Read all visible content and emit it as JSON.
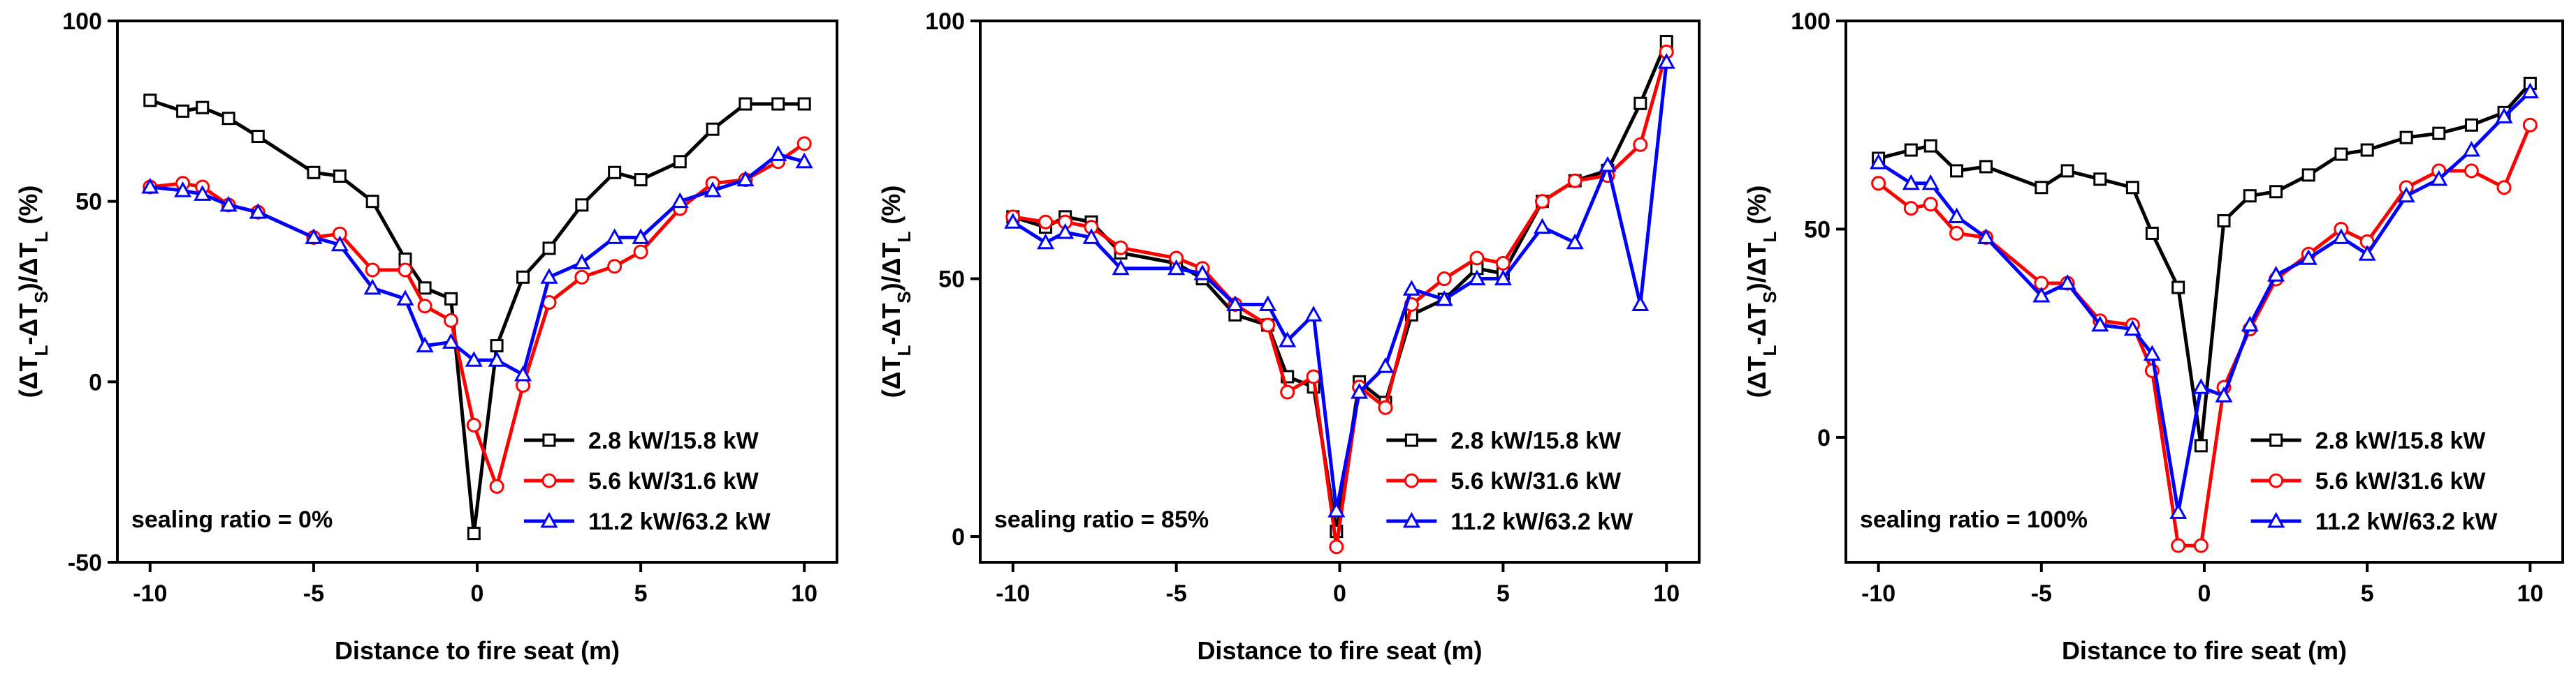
{
  "chart_data": [
    {
      "type": "line",
      "annotation": "sealing ratio = 0%",
      "xlabel": "Distance to fire seat (m)",
      "ylabel": "(ΔT_L-ΔT_S)/ΔT_L (%)",
      "xlim": [
        -11,
        11
      ],
      "ylim": [
        -50,
        100
      ],
      "xticks": [
        -10,
        -5,
        0,
        5,
        10
      ],
      "yticks": [
        -50,
        0,
        50,
        100
      ],
      "legend": "bottom-right",
      "series": [
        {
          "name": "2.8 kW/15.8 kW",
          "color": "#000000",
          "marker": "square",
          "x": [
            -10,
            -9,
            -8.4,
            -7.6,
            -6.7,
            -5,
            -4.2,
            -3.2,
            -2.2,
            -1.6,
            -0.8,
            -0.1,
            0.6,
            1.4,
            2.2,
            3.2,
            4.2,
            5,
            6.2,
            7.2,
            8.2,
            9.2,
            10
          ],
          "y": [
            78,
            75,
            76,
            73,
            68,
            58,
            57,
            50,
            34,
            26,
            23,
            -42,
            10,
            29,
            37,
            49,
            58,
            56,
            61,
            70,
            77,
            77,
            77
          ]
        },
        {
          "name": "5.6 kW/31.6 kW",
          "color": "#ff0000",
          "marker": "circle",
          "x": [
            -10,
            -9,
            -8.4,
            -7.6,
            -6.7,
            -5,
            -4.2,
            -3.2,
            -2.2,
            -1.6,
            -0.8,
            -0.1,
            0.6,
            1.4,
            2.2,
            3.2,
            4.2,
            5,
            6.2,
            7.2,
            8.2,
            9.2,
            10
          ],
          "y": [
            54,
            55,
            54,
            49,
            47,
            40,
            41,
            31,
            31,
            21,
            17,
            -12,
            -29,
            -1,
            22,
            29,
            32,
            36,
            48,
            55,
            56,
            61,
            66
          ]
        },
        {
          "name": "11.2 kW/63.2 kW",
          "color": "#0000ff",
          "marker": "triangle",
          "x": [
            -10,
            -9,
            -8.4,
            -7.6,
            -6.7,
            -5,
            -4.2,
            -3.2,
            -2.2,
            -1.6,
            -0.8,
            -0.1,
            0.6,
            1.4,
            2.2,
            3.2,
            4.2,
            5,
            6.2,
            7.2,
            8.2,
            9.2,
            10
          ],
          "y": [
            54,
            53,
            52,
            49,
            47,
            40,
            38,
            26,
            23,
            10,
            11,
            6,
            6,
            2,
            29,
            33,
            40,
            40,
            50,
            53,
            56,
            63,
            61
          ]
        }
      ]
    },
    {
      "type": "line",
      "annotation": "sealing ratio = 85%",
      "xlabel": "Distance to fire seat (m)",
      "ylabel": "(ΔT_L-ΔT_S)/ΔT_L (%)",
      "xlim": [
        -11,
        11
      ],
      "ylim": [
        -5,
        100
      ],
      "xticks": [
        -10,
        -5,
        0,
        5,
        10
      ],
      "yticks": [
        0,
        50,
        100
      ],
      "legend": "bottom-right",
      "series": [
        {
          "name": "2.8 kW/15.8 kW",
          "color": "#000000",
          "marker": "square",
          "x": [
            -10,
            -9,
            -8.4,
            -7.6,
            -6.7,
            -5,
            -4.2,
            -3.2,
            -2.2,
            -1.6,
            -0.8,
            -0.1,
            0.6,
            1.4,
            2.2,
            3.2,
            4.2,
            5,
            6.2,
            7.2,
            8.2,
            9.2,
            10
          ],
          "y": [
            62,
            60,
            62,
            61,
            55,
            53,
            50,
            43,
            41,
            31,
            29,
            1,
            30,
            26,
            43,
            46,
            52,
            51,
            65,
            69,
            71,
            84,
            96
          ]
        },
        {
          "name": "5.6 kW/31.6 kW",
          "color": "#ff0000",
          "marker": "circle",
          "x": [
            -10,
            -9,
            -8.4,
            -7.6,
            -6.7,
            -5,
            -4.2,
            -3.2,
            -2.2,
            -1.6,
            -0.8,
            -0.1,
            0.6,
            1.4,
            2.2,
            3.2,
            4.2,
            5,
            6.2,
            7.2,
            8.2,
            9.2,
            10
          ],
          "y": [
            62,
            61,
            61,
            60,
            56,
            54,
            52,
            45,
            41,
            28,
            31,
            -2,
            29,
            25,
            45,
            50,
            54,
            53,
            65,
            69,
            70,
            76,
            94
          ]
        },
        {
          "name": "11.2 kW/63.2 kW",
          "color": "#0000ff",
          "marker": "triangle",
          "x": [
            -10,
            -9,
            -8.4,
            -7.6,
            -6.7,
            -5,
            -4.2,
            -3.2,
            -2.2,
            -1.6,
            -0.8,
            -0.1,
            0.6,
            1.4,
            2.2,
            3.2,
            4.2,
            5,
            6.2,
            7.2,
            8.2,
            9.2,
            10
          ],
          "y": [
            61,
            57,
            59,
            58,
            52,
            52,
            51,
            45,
            45,
            38,
            43,
            5,
            28,
            33,
            48,
            46,
            50,
            50,
            60,
            57,
            72,
            45,
            92
          ]
        }
      ]
    },
    {
      "type": "line",
      "annotation": "sealing ratio = 100%",
      "xlabel": "Distance to fire seat (m)",
      "ylabel": "(ΔT_L-ΔT_S)/ΔT_L (%)",
      "xlim": [
        -11,
        11
      ],
      "ylim": [
        -30,
        100
      ],
      "xticks": [
        -10,
        -5,
        0,
        5,
        10
      ],
      "yticks": [
        0,
        50,
        100
      ],
      "legend": "bottom-right",
      "series": [
        {
          "name": "2.8 kW/15.8 kW",
          "color": "#000000",
          "marker": "square",
          "x": [
            -10,
            -9,
            -8.4,
            -7.6,
            -6.7,
            -5,
            -4.2,
            -3.2,
            -2.2,
            -1.6,
            -0.8,
            -0.1,
            0.6,
            1.4,
            2.2,
            3.2,
            4.2,
            5,
            6.2,
            7.2,
            8.2,
            9.2,
            10
          ],
          "y": [
            67,
            69,
            70,
            64,
            65,
            60,
            64,
            62,
            60,
            49,
            36,
            -2,
            52,
            58,
            59,
            63,
            68,
            69,
            72,
            73,
            75,
            78,
            85
          ]
        },
        {
          "name": "5.6 kW/31.6 kW",
          "color": "#ff0000",
          "marker": "circle",
          "x": [
            -10,
            -9,
            -8.4,
            -7.6,
            -6.7,
            -5,
            -4.2,
            -3.2,
            -2.2,
            -1.6,
            -0.8,
            -0.1,
            0.6,
            1.4,
            2.2,
            3.2,
            4.2,
            5,
            6.2,
            7.2,
            8.2,
            9.2,
            10
          ],
          "y": [
            61,
            55,
            56,
            49,
            48,
            37,
            37,
            28,
            27,
            16,
            -26,
            -26,
            12,
            26,
            38,
            44,
            50,
            47,
            60,
            64,
            64,
            60,
            75
          ]
        },
        {
          "name": "11.2 kW/63.2 kW",
          "color": "#0000ff",
          "marker": "triangle",
          "x": [
            -10,
            -9,
            -8.4,
            -7.6,
            -6.7,
            -5,
            -4.2,
            -3.2,
            -2.2,
            -1.6,
            -0.8,
            -0.1,
            0.6,
            1.4,
            2.2,
            3.2,
            4.2,
            5,
            6.2,
            7.2,
            8.2,
            9.2,
            10
          ],
          "y": [
            66,
            61,
            61,
            53,
            48,
            34,
            37,
            27,
            26,
            20,
            -18,
            12,
            10,
            27,
            39,
            43,
            48,
            44,
            58,
            62,
            69,
            77,
            83
          ]
        }
      ]
    }
  ]
}
